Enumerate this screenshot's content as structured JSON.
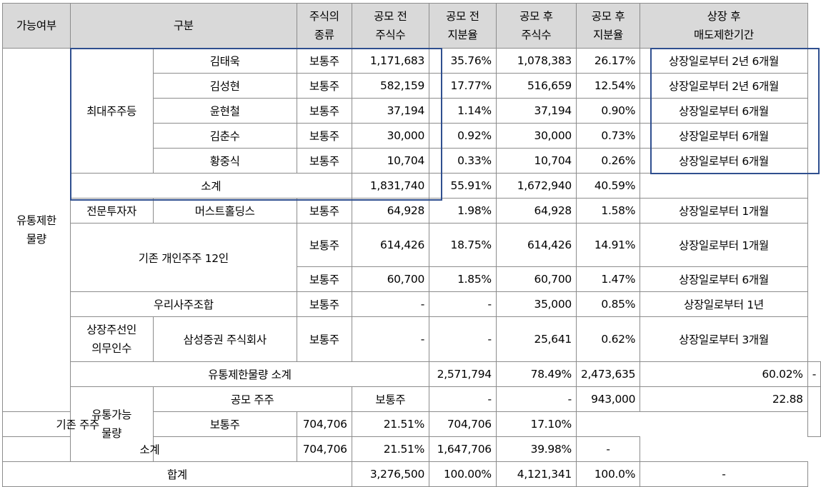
{
  "header": {
    "possibility": "가능여부",
    "category": "구분",
    "stock_type": [
      "주식의",
      "종류"
    ],
    "pre_ipo_shares": [
      "공모 전",
      "주식수"
    ],
    "pre_ipo_ratio": [
      "공모 전",
      "지분율"
    ],
    "post_ipo_shares": [
      "공모 후",
      "주식수"
    ],
    "post_ipo_ratio": [
      "공모 후",
      "지분율"
    ],
    "lockup_period": [
      "상장 후",
      "매도제한기간"
    ]
  },
  "restricted": {
    "label": [
      "유통제한",
      "물량"
    ],
    "major": {
      "group_label": "최대주주등",
      "rows": [
        {
          "name": "김태욱",
          "type": "보통주",
          "pre_shares": "1,171,683",
          "pre_ratio": "35.76%",
          "post_shares": "1,078,383",
          "post_ratio": "26.17%",
          "period": "상장일로부터 2년 6개월"
        },
        {
          "name": "김성현",
          "type": "보통주",
          "pre_shares": "582,159",
          "pre_ratio": "17.77%",
          "post_shares": "516,659",
          "post_ratio": "12.54%",
          "period": "상장일로부터 2년 6개월"
        },
        {
          "name": "윤현철",
          "type": "보통주",
          "pre_shares": "37,194",
          "pre_ratio": "1.14%",
          "post_shares": "37,194",
          "post_ratio": "0.90%",
          "period": "상장일로부터 6개월"
        },
        {
          "name": "김춘수",
          "type": "보통주",
          "pre_shares": "30,000",
          "pre_ratio": "0.92%",
          "post_shares": "30,000",
          "post_ratio": "0.73%",
          "period": "상장일로부터 6개월"
        },
        {
          "name": "황중식",
          "type": "보통주",
          "pre_shares": "10,704",
          "pre_ratio": "0.33%",
          "post_shares": "10,704",
          "post_ratio": "0.26%",
          "period": "상장일로부터 6개월"
        }
      ],
      "subtotal": {
        "label": "소계",
        "pre_shares": "1,831,740",
        "pre_ratio": "55.91%",
        "post_shares": "1,672,940",
        "post_ratio": "40.59%",
        "period": ""
      }
    },
    "professional": {
      "group_label": "전문투자자",
      "name": "머스트홀딩스",
      "type": "보통주",
      "pre_shares": "64,928",
      "pre_ratio": "1.98%",
      "post_shares": "64,928",
      "post_ratio": "1.58%",
      "period": "상장일로부터 1개월"
    },
    "existing_individuals": {
      "label": "기존 개인주주 12인",
      "rows": [
        {
          "type": "보통주",
          "pre_shares": "614,426",
          "pre_ratio": "18.75%",
          "post_shares": "614,426",
          "post_ratio": "14.91%",
          "period": "상장일로부터 1개월"
        },
        {
          "type": "보통주",
          "pre_shares": "60,700",
          "pre_ratio": "1.85%",
          "post_shares": "60,700",
          "post_ratio": "1.47%",
          "period": "상장일로부터 6개월"
        }
      ]
    },
    "esop": {
      "label": "우리사주조합",
      "type": "보통주",
      "pre_shares": "-",
      "pre_ratio": "-",
      "post_shares": "35,000",
      "post_ratio": "0.85%",
      "period": "상장일로부터 1년"
    },
    "underwriter": {
      "group_label": [
        "상장주선인",
        "의무인수"
      ],
      "name": "삼성증권 주식회사",
      "type": "보통주",
      "pre_shares": "-",
      "pre_ratio": "-",
      "post_shares": "25,641",
      "post_ratio": "0.62%",
      "period": "상장일로부터 3개월"
    },
    "total": {
      "label": "유통제한물량 소계",
      "pre_shares": "2,571,794",
      "pre_ratio": "78.49%",
      "post_shares": "2,473,635",
      "post_ratio": "60.02%",
      "period": "-"
    }
  },
  "tradable": {
    "label": [
      "유통가능",
      "물량"
    ],
    "rows": [
      {
        "label": "공모 주주",
        "type": "보통주",
        "pre_shares": "-",
        "pre_ratio": "-",
        "post_shares": "943,000",
        "post_ratio": "22.88",
        "period": ""
      },
      {
        "label": "기존 주주",
        "type": "보통주",
        "pre_shares": "704,706",
        "pre_ratio": "21.51%",
        "post_shares": "704,706",
        "post_ratio": "17.10%",
        "period": ""
      },
      {
        "label": "소계",
        "type": "",
        "pre_shares": "704,706",
        "pre_ratio": "21.51%",
        "post_shares": "1,647,706",
        "post_ratio": "39.98%",
        "period": "-"
      }
    ]
  },
  "grand_total": {
    "label": "합계",
    "pre_shares": "3,276,500",
    "pre_ratio": "100.00%",
    "post_shares": "4,121,341",
    "post_ratio": "100.0%",
    "period": "-"
  },
  "colors": {
    "header_bg": "#d9d9d9",
    "highlight_border": "#2f4f8f",
    "grid": "#8c8c8c"
  }
}
